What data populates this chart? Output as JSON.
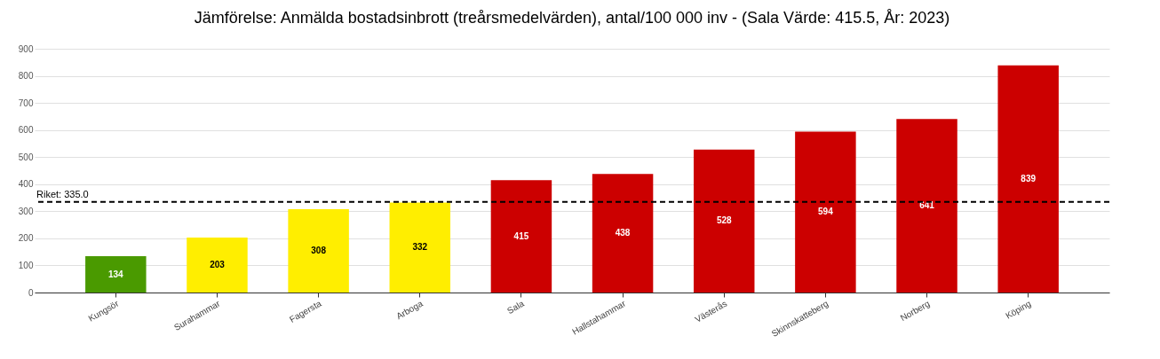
{
  "chart_data": {
    "type": "bar",
    "title": "Jämförelse: Anmälda bostadsinbrott (treårsmedelvärden), antal/100 000 inv - (Sala Värde: 415.5, År: 2023)",
    "categories": [
      "Kungsör",
      "Surahammar",
      "Fagersta",
      "Arboga",
      "Sala",
      "Hallstahammar",
      "Västerås",
      "Skinnskatteberg",
      "Norberg",
      "Köping"
    ],
    "values": [
      134,
      203,
      308,
      332,
      415,
      438,
      528,
      594,
      641,
      839
    ],
    "colors": [
      "#4a9a00",
      "#ffee00",
      "#ffee00",
      "#ffee00",
      "#cc0000",
      "#cc0000",
      "#cc0000",
      "#cc0000",
      "#cc0000",
      "#cc0000"
    ],
    "ylim": [
      0,
      900
    ],
    "yticks": [
      0,
      100,
      200,
      300,
      400,
      500,
      600,
      700,
      800,
      900
    ],
    "grid": "y",
    "data_labels": true,
    "ref_lines": [
      {
        "axis": "y",
        "value": 335.0,
        "label": "Riket: 335.0",
        "color": "#000000",
        "line_style": "dashed"
      }
    ]
  }
}
